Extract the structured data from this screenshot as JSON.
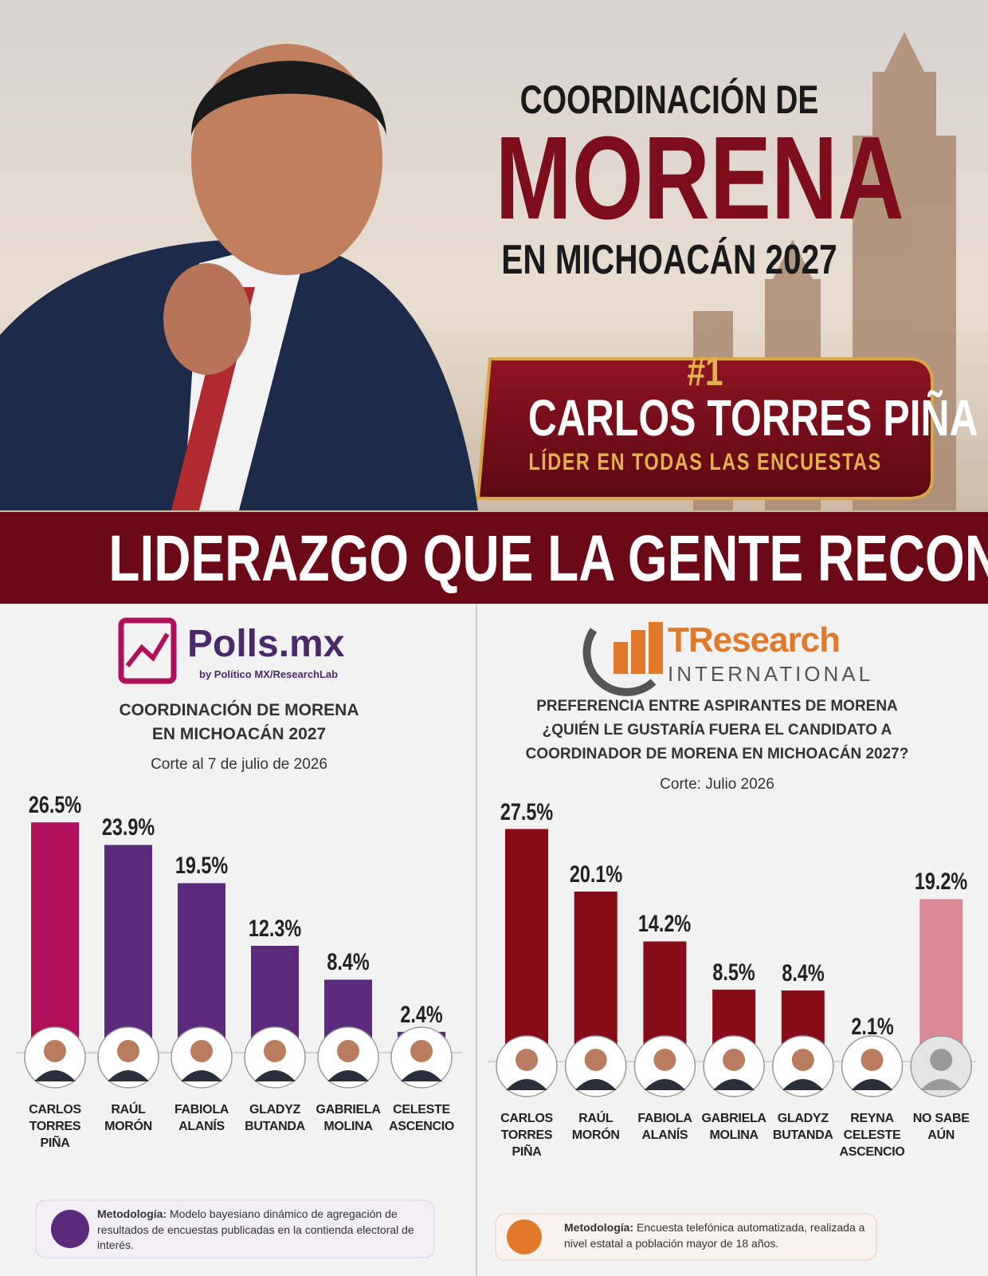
{
  "header": {
    "kicker": "COORDINACIÓN DE",
    "title": "MORENA",
    "subtitle": "EN MICHOACÁN 2027",
    "badge": {
      "rank": "#1",
      "name": "CARLOS TORRES PIÑA",
      "tagline": "LÍDER EN TODAS LAS ENCUESTAS"
    },
    "banner": "LIDERAZGO QUE LA GENTE RECONOCE"
  },
  "chart_data": [
    {
      "type": "bar",
      "source": {
        "name": "Polls.mx",
        "byline": "by Político MX/ResearchLab"
      },
      "title": [
        "COORDINACIÓN DE MORENA",
        "EN MICHOACÁN 2027"
      ],
      "subtitle": "Corte al 7 de julio de 2026",
      "categories": [
        "CARLOS TORRES PIÑA",
        "RAÚL MORÓN",
        "FABIOLA ALANÍS",
        "GLADYZ BUTANDA",
        "GABRIELA MOLINA",
        "CELESTE ASCENCIO"
      ],
      "values": [
        26.5,
        23.9,
        19.5,
        12.3,
        8.4,
        2.4
      ],
      "value_labels": [
        "26.5%",
        "23.9%",
        "19.5%",
        "12.3%",
        "8.4%",
        "2.4%"
      ],
      "colors": [
        "#b0105a",
        "#5b2a7c",
        "#5b2a7c",
        "#5b2a7c",
        "#5b2a7c",
        "#5b2a7c"
      ],
      "methodology": {
        "label": "Metodología:",
        "text": "Modelo bayesiano dinámico de agregación de resultados de encuestas publicadas en la contienda electoral de interés."
      }
    },
    {
      "type": "bar",
      "source": {
        "name": "TResearch",
        "byline": "INTERNATIONAL"
      },
      "title": [
        "PREFERENCIA ENTRE ASPIRANTES DE MORENA",
        "¿QUIÉN LE GUSTARÍA FUERA EL CANDIDATO A",
        "COORDINADOR DE MORENA EN MICHOACÁN 2027?"
      ],
      "subtitle": "Corte: Julio 2026",
      "categories": [
        "CARLOS TORRES PIÑA",
        "RAÚL MORÓN",
        "FABIOLA ALANÍS",
        "GABRIELA MOLINA",
        "GLADYZ BUTANDA",
        "REYNA CELESTE ASCENCIO",
        "NO SABE AÚN"
      ],
      "values": [
        27.5,
        20.1,
        14.2,
        8.5,
        8.4,
        2.1,
        19.2
      ],
      "value_labels": [
        "27.5%",
        "20.1%",
        "14.2%",
        "8.5%",
        "8.4%",
        "2.1%",
        "19.2%"
      ],
      "colors": [
        "#860d18",
        "#860d18",
        "#860d18",
        "#860d18",
        "#860d18",
        "#860d18",
        "#d98a94"
      ],
      "methodology": {
        "label": "Metodología:",
        "text": "Encuesta telefónica automatizada, realizada a nivel estatal a población mayor de 18 años."
      }
    }
  ]
}
